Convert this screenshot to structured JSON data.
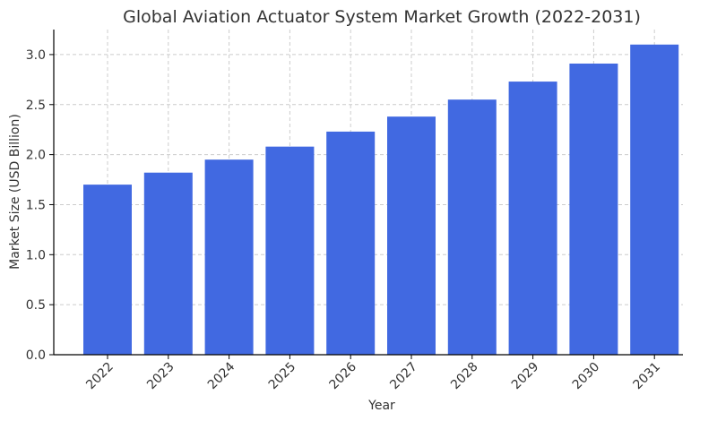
{
  "chart_data": {
    "type": "bar",
    "title": "Global Aviation Actuator System Market Growth (2022-2031)",
    "xlabel": "Year",
    "ylabel": "Market Size (USD Billion)",
    "categories": [
      "2022",
      "2023",
      "2024",
      "2025",
      "2026",
      "2027",
      "2028",
      "2029",
      "2030",
      "2031"
    ],
    "values": [
      1.7,
      1.82,
      1.95,
      2.08,
      2.23,
      2.38,
      2.55,
      2.73,
      2.91,
      3.1
    ],
    "ylim": [
      0,
      3.25
    ],
    "yticks": [
      "0.0",
      "0.5",
      "1.0",
      "1.5",
      "2.0",
      "2.5",
      "3.0"
    ],
    "grid": true,
    "bar_color": "#4169e1"
  }
}
